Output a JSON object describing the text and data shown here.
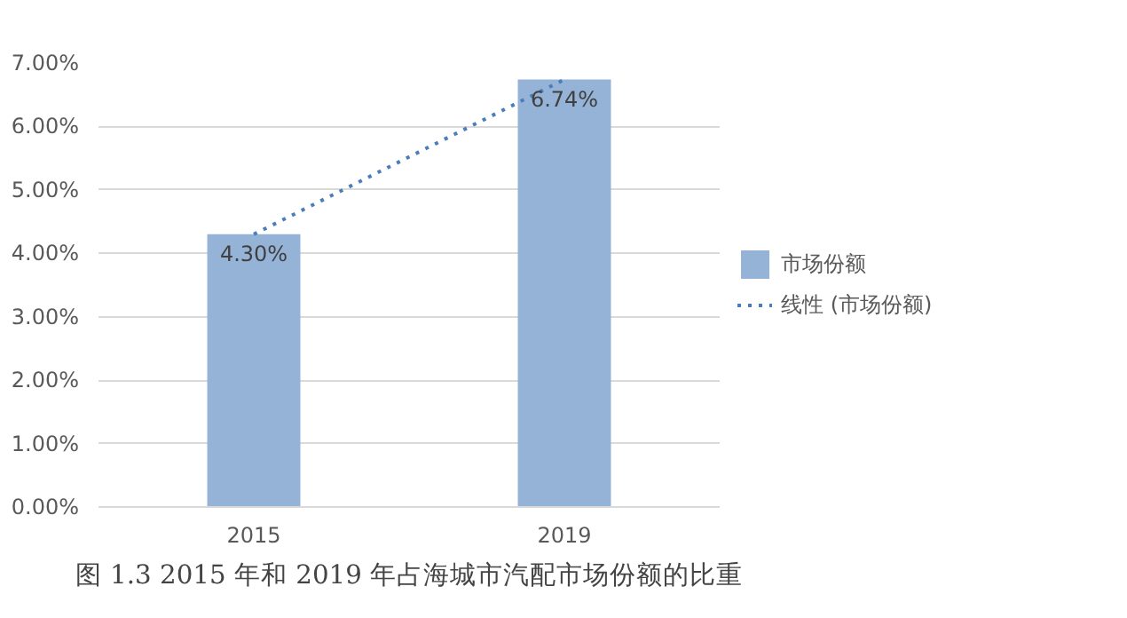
{
  "chart_data": {
    "type": "bar",
    "categories": [
      "2015",
      "2019"
    ],
    "series": [
      {
        "name": "市场份额",
        "color": "#95b3d7",
        "values": [
          4.3,
          6.74
        ],
        "value_labels": [
          "4.30%",
          "6.74%"
        ]
      },
      {
        "name": "线性 (市场份额)",
        "type": "line",
        "color": "#4a7ebb",
        "line_style": "dotted",
        "values": [
          4.3,
          6.74
        ]
      }
    ],
    "ylim": [
      0,
      7
    ],
    "yticks": [
      {
        "value": 0,
        "label": "0.00%"
      },
      {
        "value": 1,
        "label": "1.00%"
      },
      {
        "value": 2,
        "label": "2.00%"
      },
      {
        "value": 3,
        "label": "3.00%"
      },
      {
        "value": 4,
        "label": "4.00%"
      },
      {
        "value": 5,
        "label": "5.00%"
      },
      {
        "value": 6,
        "label": "6.00%"
      },
      {
        "value": 7,
        "label": "7.00%"
      }
    ],
    "grid": "y",
    "legend": "right",
    "annotations": [
      "图 1.3 2015 年和 2019 年占海城市汽配市场份额的比重"
    ]
  }
}
